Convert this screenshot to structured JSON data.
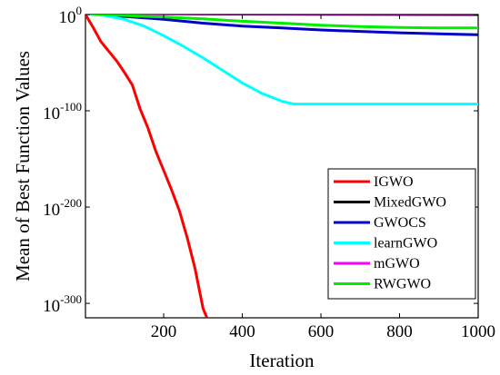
{
  "chart_data": {
    "type": "line",
    "xlabel": "Iteration",
    "ylabel": "Mean of Best Function Values",
    "x_scale": "linear",
    "y_scale": "log",
    "xlim": [
      1,
      1000
    ],
    "ylim_exponent": [
      -315,
      0
    ],
    "x_ticks": [
      {
        "value": 200,
        "label": "200"
      },
      {
        "value": 400,
        "label": "400"
      },
      {
        "value": 600,
        "label": "600"
      },
      {
        "value": 800,
        "label": "800"
      },
      {
        "value": 1000,
        "label": "1000"
      }
    ],
    "y_ticks": [
      {
        "exponent": 0,
        "base": "10",
        "sup": "0"
      },
      {
        "exponent": -100,
        "base": "10",
        "sup": "-100"
      },
      {
        "exponent": -200,
        "base": "10",
        "sup": "-200"
      },
      {
        "exponent": -300,
        "base": "10",
        "sup": "-300"
      }
    ],
    "grid": false,
    "legend_position": "bottom-right",
    "series": [
      {
        "name": "IGWO",
        "color": "#ff0000",
        "x": [
          1,
          20,
          40,
          60,
          80,
          100,
          120,
          140,
          160,
          180,
          200,
          220,
          240,
          260,
          280,
          300,
          310
        ],
        "log10_y": [
          0,
          -13,
          -28,
          -38,
          -48,
          -60,
          -73,
          -98,
          -118,
          -142,
          -162,
          -182,
          -204,
          -232,
          -264,
          -305,
          -315
        ]
      },
      {
        "name": "MixedGWO",
        "color": "#000000",
        "x": [
          1,
          100,
          200,
          400,
          600,
          800,
          1000
        ],
        "log10_y": [
          1,
          1,
          0.8,
          0.5,
          0.3,
          0.1,
          0
        ]
      },
      {
        "name": "GWOCS",
        "color": "#0000cc",
        "x": [
          1,
          100,
          200,
          300,
          400,
          500,
          600,
          700,
          800,
          900,
          1000
        ],
        "log10_y": [
          1,
          -2,
          -5,
          -9,
          -12,
          -14,
          -16,
          -17.5,
          -19,
          -20,
          -21
        ]
      },
      {
        "name": "learnGWO",
        "color": "#00ffff",
        "x": [
          1,
          50,
          100,
          150,
          200,
          250,
          300,
          350,
          400,
          450,
          500,
          530,
          600,
          700,
          800,
          900,
          1000
        ],
        "log10_y": [
          1,
          -1,
          -5,
          -12,
          -22,
          -33,
          -45,
          -58,
          -71,
          -82,
          -90,
          -93,
          -93,
          -93,
          -93,
          -93,
          -93
        ]
      },
      {
        "name": "mGWO",
        "color": "#ff00ff",
        "x": [
          1,
          100,
          200,
          400,
          600,
          800,
          1000
        ],
        "log10_y": [
          1,
          1,
          1,
          1,
          1,
          1,
          1
        ]
      },
      {
        "name": "RWGWO",
        "color": "#00ee00",
        "x": [
          1,
          100,
          200,
          300,
          400,
          500,
          600,
          700,
          800,
          900,
          1000
        ],
        "log10_y": [
          1,
          -1,
          -2.5,
          -4.5,
          -7,
          -9,
          -11,
          -12.5,
          -13.5,
          -14,
          -14
        ]
      }
    ]
  }
}
